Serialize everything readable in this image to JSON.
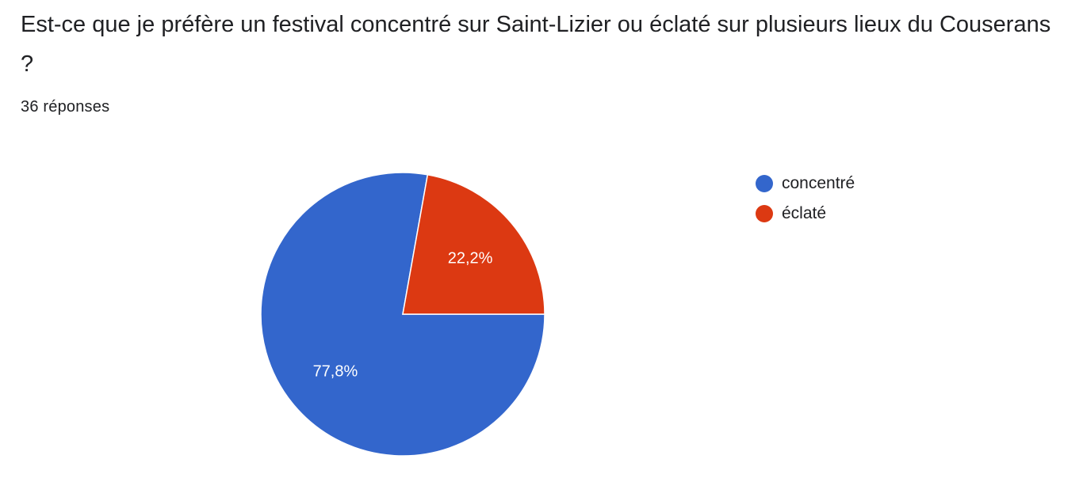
{
  "question": {
    "title": "Est-ce que je préfère un festival concentré sur Saint-Lizier ou éclaté sur plusieurs lieux du Couserans ?",
    "response_count": "36 réponses"
  },
  "chart_data": {
    "type": "pie",
    "categories": [
      "concentré",
      "éclaté"
    ],
    "values": [
      77.8,
      22.2
    ],
    "labels": [
      "77,8%",
      "22,2%"
    ],
    "colors": [
      "#3366cc",
      "#dc3912"
    ],
    "legend": "right",
    "start_angle": "90-degrees-clockwise",
    "direction": "counterclockwise"
  }
}
